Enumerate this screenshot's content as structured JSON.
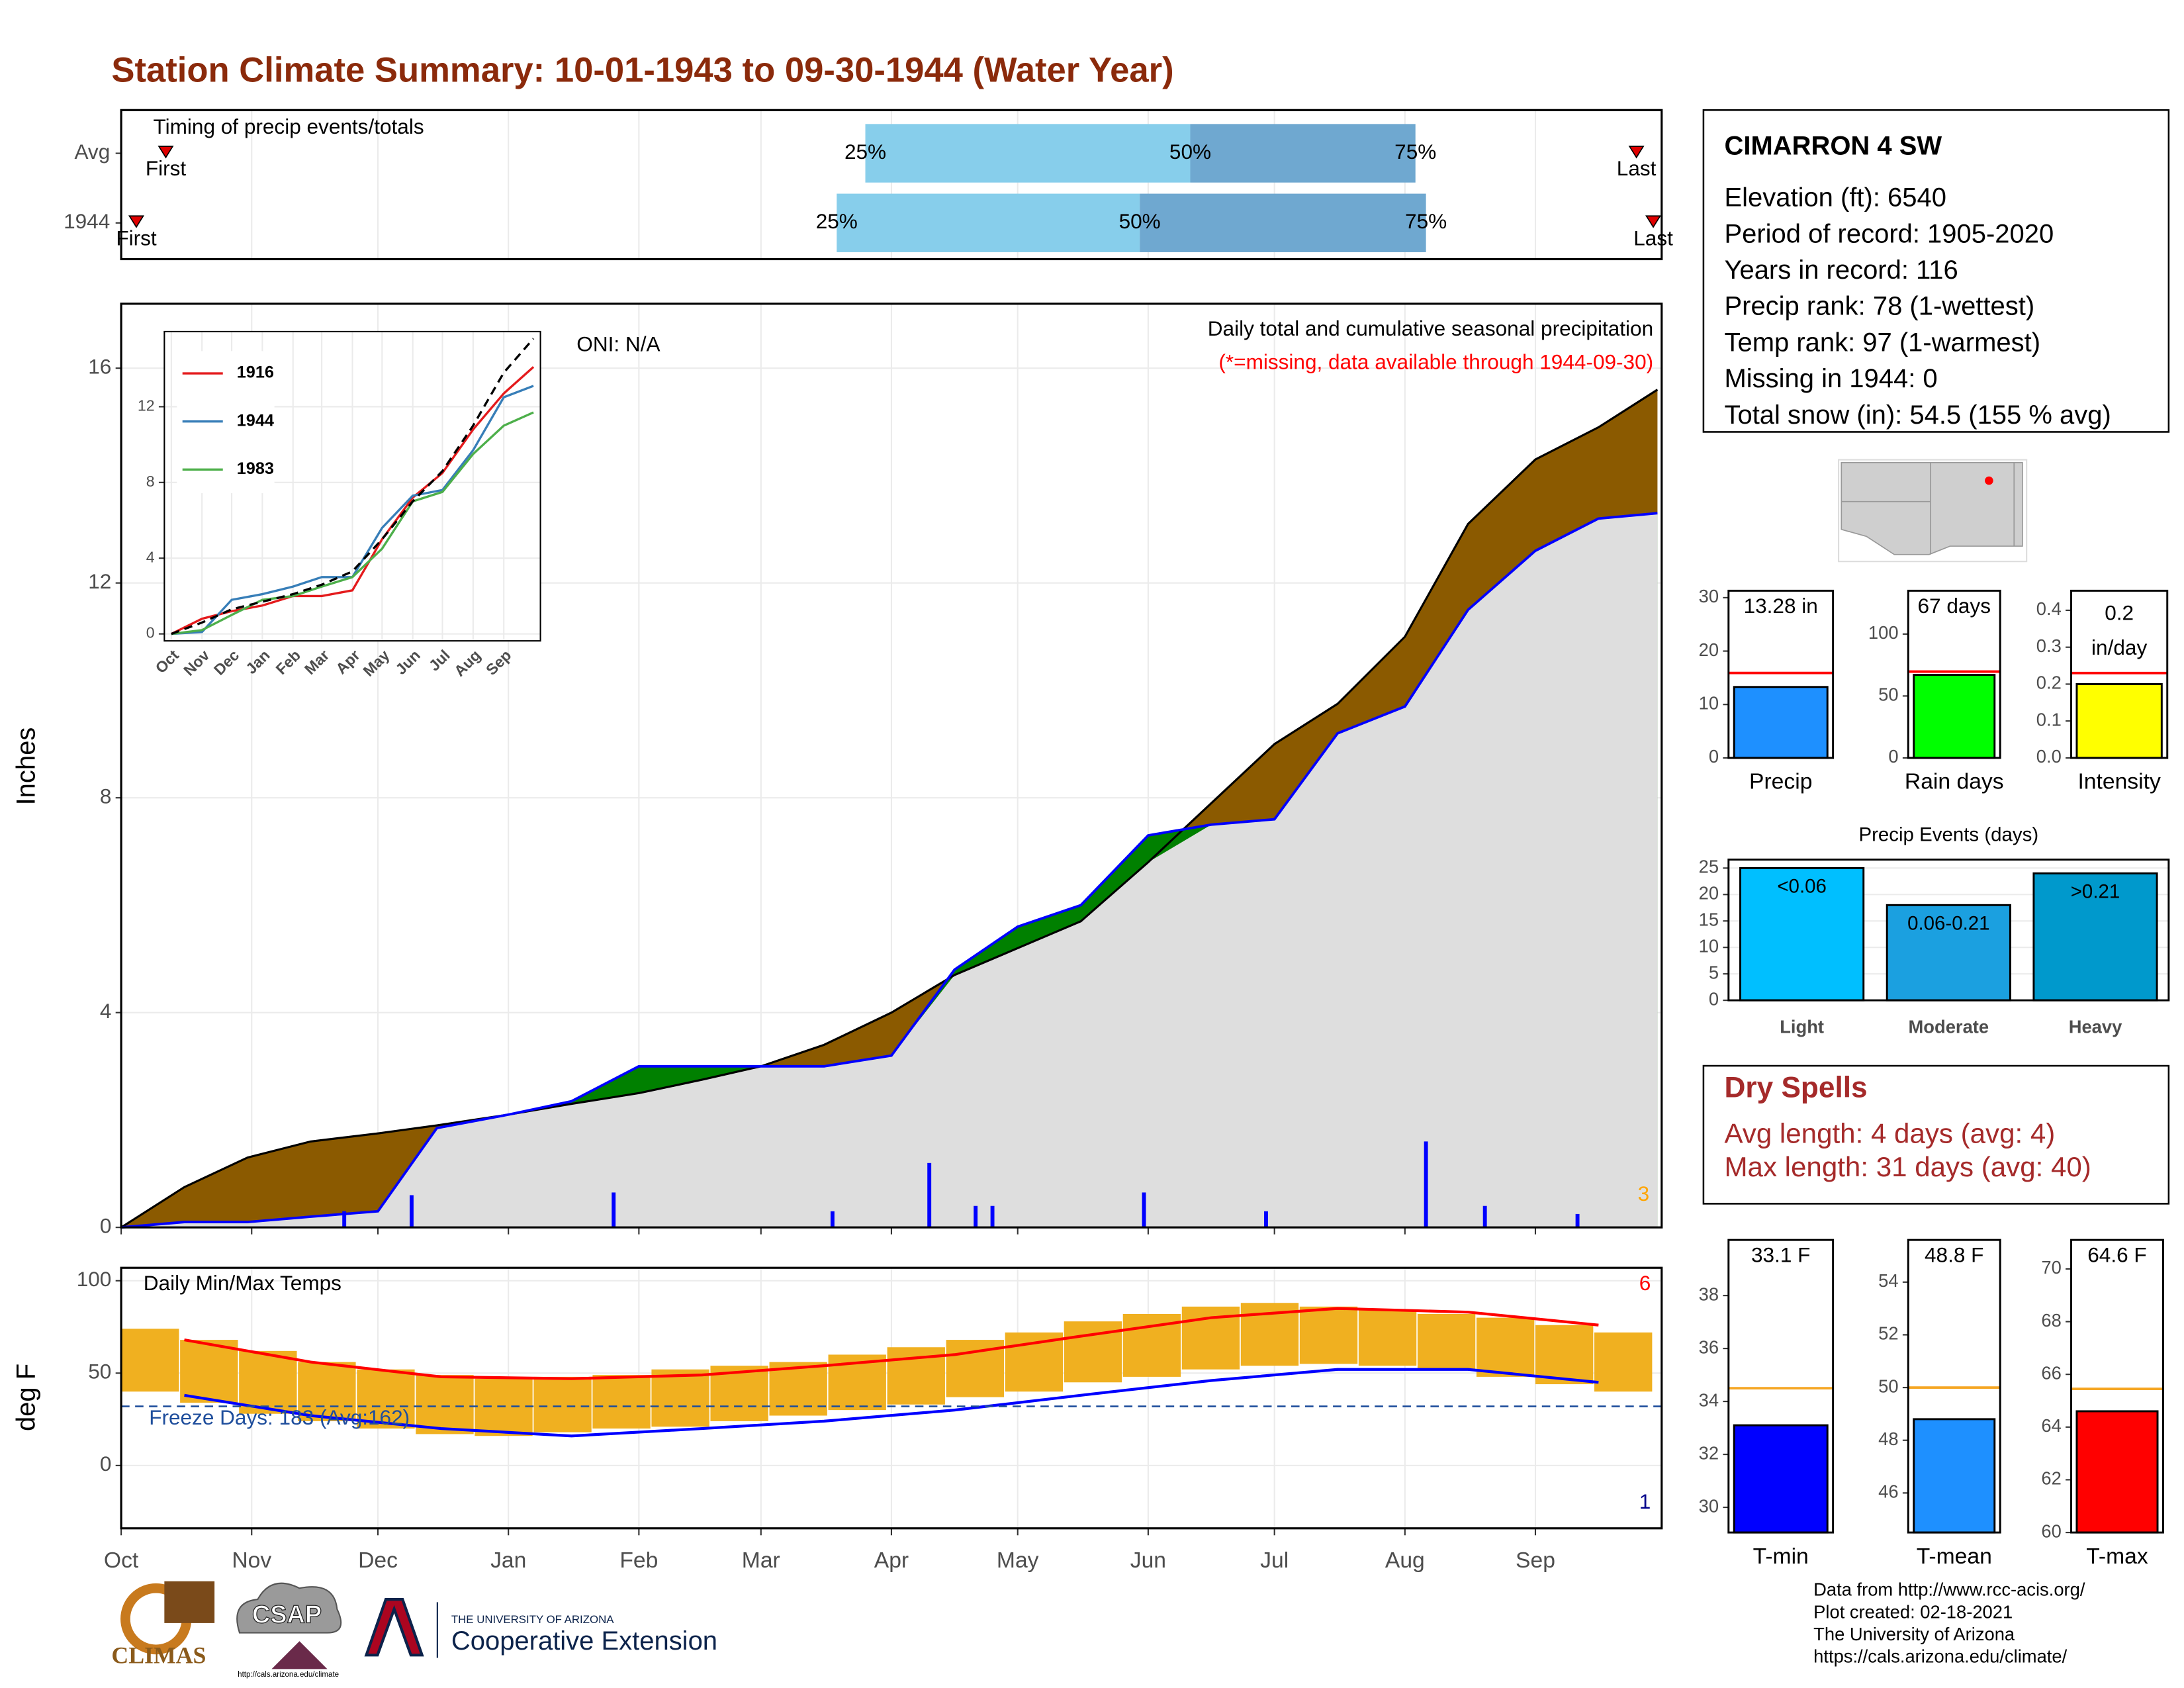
{
  "title": "Station Climate Summary: 10-01-1943 to 09-30-1944 (Water Year)",
  "station": {
    "name": "CIMARRON 4 SW",
    "lines": [
      "Elevation (ft): 6540",
      "Period of record: 1905-2020",
      "Years in record: 116",
      "Precip rank: 78 (1-wettest)",
      "Temp rank: 97 (1-warmest)",
      "Missing in 1944: 0",
      "Total snow (in): 54.5 (155 % avg)"
    ]
  },
  "dry_spells": {
    "title": "Dry Spells",
    "lines": [
      "Avg length: 4 days (avg: 4)",
      "Max length: 31 days (avg: 40)"
    ]
  },
  "footer": {
    "credits": [
      "Data from http://www.rcc-acis.org/",
      "Plot created: 02-18-2021",
      "The University of Arizona",
      "https://cals.arizona.edu/climate/"
    ],
    "climas": "CLIMAS",
    "csap": "CSAP",
    "csap_url": "http://cals.arizona.edu/climate",
    "ua": "THE UNIVERSITY OF ARIZONA",
    "extension": "Cooperative Extension"
  },
  "chart_data": [
    {
      "type": "timing",
      "title": "Timing of precip events/totals",
      "xlim": [
        0,
        366
      ],
      "first_label": "First",
      "last_label": "Last",
      "percentile_labels": [
        "25%",
        "50%",
        "75%"
      ],
      "colors": [
        "#87ceeb",
        "#6fa8d0"
      ],
      "rows": [
        {
          "name": "Avg",
          "first": 10.6,
          "p25": 176.8,
          "p50": 254,
          "p75": 307.5,
          "last": 360
        },
        {
          "name": "1944",
          "first": 3.6,
          "p25": 170,
          "p50": 242,
          "p75": 310,
          "last": 364
        }
      ]
    },
    {
      "type": "area",
      "ylabel": "Inches",
      "annotation": "ONI: N/A",
      "subtitle": "Daily total and cumulative seasonal precipitation",
      "note": "(*=missing, data available through 1944-09-30)",
      "count_label": "3",
      "xlim": [
        0,
        366
      ],
      "ylim": [
        0,
        17.2
      ],
      "yticks": [
        0,
        4,
        8,
        12,
        16
      ],
      "grid": true,
      "x": [
        0,
        15,
        30,
        45,
        61,
        75,
        92,
        107,
        123,
        138,
        152,
        167,
        183,
        198,
        213,
        228,
        244,
        259,
        274,
        289,
        305,
        320,
        336,
        351,
        365
      ],
      "series": [
        {
          "name": "Avg",
          "color": "#000000",
          "values": [
            0,
            0.75,
            1.3,
            1.6,
            1.75,
            1.9,
            2.1,
            2.3,
            2.5,
            2.75,
            3.0,
            3.4,
            4.0,
            4.7,
            5.2,
            5.7,
            6.8,
            7.9,
            9.0,
            9.75,
            11.0,
            13.1,
            14.3,
            14.9,
            15.6
          ]
        },
        {
          "name": "1944",
          "color": "#0000ff",
          "values": [
            0,
            0.1,
            0.1,
            0.2,
            0.3,
            1.85,
            2.1,
            2.35,
            3.0,
            3.0,
            3.0,
            3.0,
            3.2,
            4.8,
            5.6,
            6.0,
            7.3,
            7.5,
            7.6,
            9.2,
            9.7,
            11.5,
            12.6,
            13.2,
            13.3
          ]
        }
      ],
      "fill_colors": {
        "below": "#8b5a00",
        "above": "#008000",
        "base": "#dedede"
      },
      "daily": {
        "color": "#0000ff",
        "days": [
          53,
          69,
          117,
          169,
          192,
          203,
          207,
          243,
          272,
          310,
          324,
          346
        ],
        "values": [
          0.3,
          0.6,
          0.65,
          0.3,
          1.2,
          0.4,
          0.4,
          0.65,
          0.3,
          1.6,
          0.4,
          0.25
        ]
      }
    },
    {
      "type": "line",
      "xlim": [
        0,
        366
      ],
      "ylim": [
        0,
        15.6
      ],
      "yticks": [
        0,
        4,
        8,
        12
      ],
      "xticks": [
        {
          "value": 0,
          "label": "Oct"
        },
        {
          "value": 31,
          "label": "Nov"
        },
        {
          "value": 61,
          "label": "Dec"
        },
        {
          "value": 92,
          "label": "Jan"
        },
        {
          "value": 123,
          "label": "Feb"
        },
        {
          "value": 152,
          "label": "Mar"
        },
        {
          "value": 183,
          "label": "Apr"
        },
        {
          "value": 213,
          "label": "May"
        },
        {
          "value": 244,
          "label": "Jun"
        },
        {
          "value": 274,
          "label": "Jul"
        },
        {
          "value": 305,
          "label": "Aug"
        },
        {
          "value": 336,
          "label": "Sep"
        }
      ],
      "x": [
        0,
        31,
        61,
        92,
        123,
        152,
        183,
        213,
        244,
        274,
        305,
        336,
        366
      ],
      "series": [
        {
          "name": "1916",
          "color": "#e41a1c",
          "values": [
            0,
            0.8,
            1.2,
            1.5,
            2.0,
            2.0,
            2.3,
            5.0,
            7.2,
            8.5,
            10.8,
            12.7,
            14.1
          ]
        },
        {
          "name": "1944",
          "color": "#377eb8",
          "values": [
            0,
            0.1,
            1.8,
            2.1,
            2.5,
            3.0,
            3.0,
            5.6,
            7.3,
            7.6,
            9.7,
            12.5,
            13.1
          ]
        },
        {
          "name": "1983",
          "color": "#4daf4a",
          "values": [
            0,
            0.2,
            1.0,
            1.8,
            2.0,
            2.5,
            3.0,
            4.5,
            7.0,
            7.5,
            9.5,
            11.0,
            11.7
          ]
        }
      ],
      "avg_line": {
        "color": "#000000",
        "values": [
          0,
          0.6,
          1.3,
          1.7,
          2.1,
          2.6,
          3.3,
          5.0,
          7.0,
          8.6,
          11.0,
          13.8,
          15.6
        ]
      }
    },
    {
      "type": "range",
      "title": "Daily Min/Max Temps",
      "ylabel": "deg F",
      "xlim": [
        0,
        366
      ],
      "ylim": [
        -34,
        107
      ],
      "yticks": [
        0,
        50,
        100
      ],
      "xticks": [
        {
          "value": 0,
          "label": "Oct"
        },
        {
          "value": 31,
          "label": "Nov"
        },
        {
          "value": 61,
          "label": "Dec"
        },
        {
          "value": 92,
          "label": "Jan"
        },
        {
          "value": 123,
          "label": "Feb"
        },
        {
          "value": 152,
          "label": "Mar"
        },
        {
          "value": 183,
          "label": "Apr"
        },
        {
          "value": 213,
          "label": "May"
        },
        {
          "value": 244,
          "label": "Jun"
        },
        {
          "value": 274,
          "label": "Jul"
        },
        {
          "value": 305,
          "label": "Aug"
        },
        {
          "value": 336,
          "label": "Sep"
        }
      ],
      "daily": {
        "color": "#f0b020",
        "width": 14,
        "days": [
          0,
          14,
          28,
          42,
          56,
          70,
          84,
          98,
          112,
          126,
          140,
          154,
          168,
          182,
          196,
          210,
          224,
          238,
          252,
          266,
          280,
          294,
          308,
          322,
          336,
          350
        ],
        "max": [
          74,
          68,
          62,
          56,
          52,
          49,
          47,
          48,
          49,
          52,
          54,
          56,
          60,
          64,
          68,
          72,
          78,
          82,
          86,
          88,
          86,
          84,
          82,
          80,
          76,
          72
        ],
        "min": [
          40,
          34,
          28,
          24,
          20,
          17,
          16,
          18,
          20,
          21,
          24,
          27,
          30,
          33,
          37,
          40,
          45,
          48,
          52,
          54,
          55,
          54,
          52,
          48,
          44,
          40
        ]
      },
      "normals": {
        "x": [
          15,
          45,
          76,
          107,
          138,
          167,
          198,
          228,
          259,
          289,
          320,
          351
        ],
        "max": {
          "color": "#ff0000",
          "values": [
            68,
            56,
            48,
            47,
            49,
            54,
            60,
            70,
            80,
            85,
            83,
            76
          ]
        },
        "min": {
          "color": "#0000ff",
          "values": [
            38,
            27,
            20,
            16,
            20,
            24,
            30,
            38,
            46,
            52,
            52,
            45
          ]
        }
      },
      "freeze": {
        "value": 32,
        "label": "Freeze Days: 183 (Avg:162)",
        "color": "#1f4e9c"
      },
      "high_count": {
        "label": "6",
        "color": "#ff0000"
      },
      "low_count": {
        "label": "1",
        "color": "#00008b"
      }
    },
    {
      "type": "bar",
      "categories": [
        "Precip"
      ],
      "values": [
        13.28
      ],
      "value_labels": [
        "13.28 in"
      ],
      "color": "#1e90ff",
      "avg": 15.9,
      "avg_color": "#ff0000",
      "ylim": [
        0,
        31.3
      ],
      "yticks": [
        0,
        10,
        20,
        30
      ]
    },
    {
      "type": "bar",
      "categories": [
        "Rain days"
      ],
      "values": [
        67
      ],
      "value_labels": [
        "67 days"
      ],
      "color": "#00ff00",
      "avg": 69.7,
      "avg_color": "#ff0000",
      "ylim": [
        0,
        135
      ],
      "yticks": [
        0,
        50,
        100
      ]
    },
    {
      "type": "bar",
      "categories": [
        "Intensity"
      ],
      "values": [
        0.2
      ],
      "value_labels": [
        "0.2"
      ],
      "unit": "in/day",
      "color": "#ffff00",
      "avg": 0.23,
      "avg_color": "#ff0000",
      "ylim": [
        0,
        0.453
      ],
      "yticks": [
        {
          "value": 0,
          "label": "0.0"
        },
        {
          "value": 0.1,
          "label": "0.1"
        },
        {
          "value": 0.2,
          "label": "0.2"
        },
        {
          "value": 0.3,
          "label": "0.3"
        },
        {
          "value": 0.4,
          "label": "0.4"
        }
      ]
    },
    {
      "type": "bar",
      "title": "Precip Events (days)",
      "categories": [
        "Light",
        "Moderate",
        "Heavy"
      ],
      "values": [
        25,
        18,
        24
      ],
      "bin_labels": [
        "<0.06",
        "0.06-0.21",
        ">0.21"
      ],
      "colors": [
        "#00bfff",
        "#1ba0e0",
        "#0099cc"
      ],
      "ylim": [
        0,
        26.6
      ],
      "yticks": [
        0,
        5,
        10,
        15,
        20,
        25
      ],
      "grid": true
    },
    {
      "type": "bar",
      "categories": [
        "T-min"
      ],
      "values": [
        33.1
      ],
      "value_labels": [
        "33.1 F"
      ],
      "color": "#0000ff",
      "avg": 34.5,
      "avg_color": "#f5a623",
      "ylim": [
        29.05,
        40.1
      ],
      "yticks": [
        30,
        32,
        34,
        36,
        38
      ]
    },
    {
      "type": "bar",
      "categories": [
        "T-mean"
      ],
      "values": [
        48.8
      ],
      "value_labels": [
        "48.8 F"
      ],
      "color": "#1e90ff",
      "avg": 50,
      "avg_color": "#f5a623",
      "ylim": [
        44.5,
        55.6
      ],
      "yticks": [
        46,
        48,
        50,
        52,
        54
      ]
    },
    {
      "type": "bar",
      "categories": [
        "T-max"
      ],
      "values": [
        64.6
      ],
      "value_labels": [
        "64.6 F"
      ],
      "color": "#ff0000",
      "avg": 65.45,
      "avg_color": "#f5a623",
      "ylim": [
        60,
        71.1
      ],
      "yticks": [
        60,
        62,
        64,
        66,
        68,
        70
      ]
    }
  ]
}
